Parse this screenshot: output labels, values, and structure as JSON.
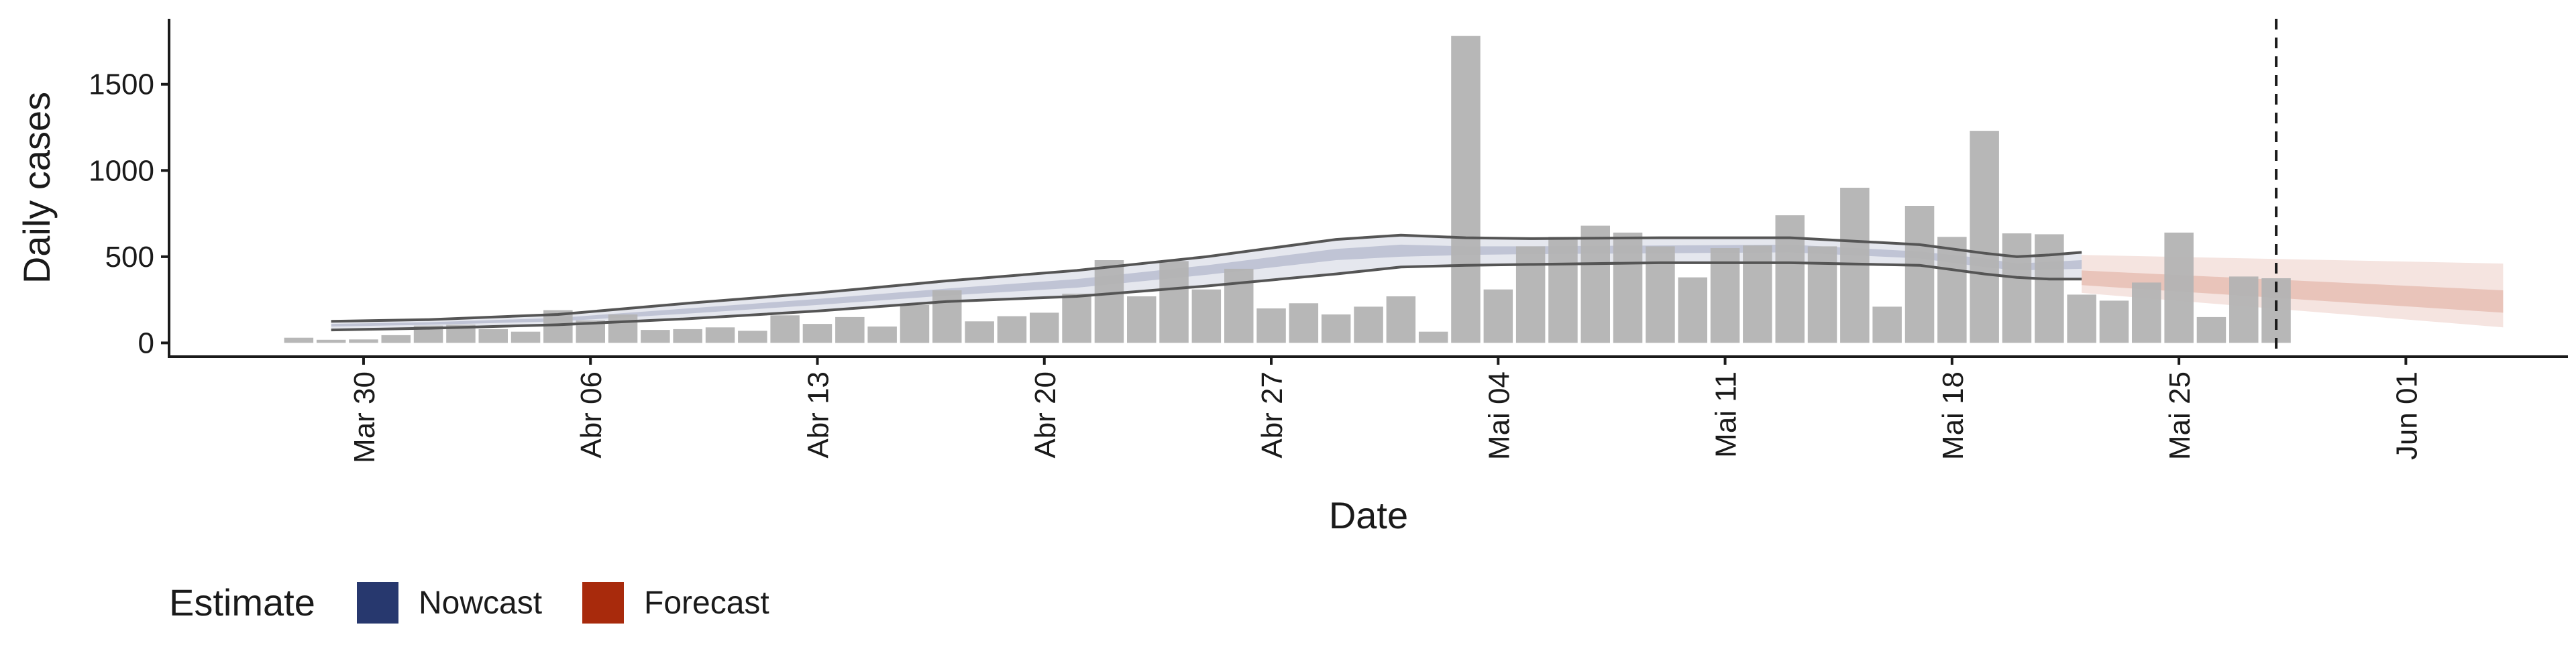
{
  "chart_data": {
    "type": "bar",
    "xlabel": "Date",
    "ylabel": "Daily cases",
    "ylim": [
      -80,
      1880
    ],
    "yticks": [
      0,
      500,
      1000,
      1500
    ],
    "x_dates": [
      "2020-03-28",
      "2020-03-29",
      "2020-03-30",
      "2020-03-31",
      "2020-04-01",
      "2020-04-02",
      "2020-04-03",
      "2020-04-04",
      "2020-04-05",
      "2020-04-06",
      "2020-04-07",
      "2020-04-08",
      "2020-04-09",
      "2020-04-10",
      "2020-04-11",
      "2020-04-12",
      "2020-04-13",
      "2020-04-14",
      "2020-04-15",
      "2020-04-16",
      "2020-04-17",
      "2020-04-18",
      "2020-04-19",
      "2020-04-20",
      "2020-04-21",
      "2020-04-22",
      "2020-04-23",
      "2020-04-24",
      "2020-04-25",
      "2020-04-26",
      "2020-04-27",
      "2020-04-28",
      "2020-04-29",
      "2020-04-30",
      "2020-05-01",
      "2020-05-02",
      "2020-05-03",
      "2020-05-04",
      "2020-05-05",
      "2020-05-06",
      "2020-05-07",
      "2020-05-08",
      "2020-05-09",
      "2020-05-10",
      "2020-05-11",
      "2020-05-12",
      "2020-05-13",
      "2020-05-14",
      "2020-05-15",
      "2020-05-16",
      "2020-05-17",
      "2020-05-18",
      "2020-05-19",
      "2020-05-20",
      "2020-05-21",
      "2020-05-22",
      "2020-05-23",
      "2020-05-24",
      "2020-05-25",
      "2020-05-26",
      "2020-05-27",
      "2020-05-28",
      "2020-05-29"
    ],
    "xlim": [
      "2020-03-24",
      "2020-06-06"
    ],
    "x_tick_labels": [
      {
        "date": "2020-03-30",
        "label": "Mar 30"
      },
      {
        "date": "2020-04-06",
        "label": "Abr 06"
      },
      {
        "date": "2020-04-13",
        "label": "Abr 13"
      },
      {
        "date": "2020-04-20",
        "label": "Abr 20"
      },
      {
        "date": "2020-04-27",
        "label": "Abr 27"
      },
      {
        "date": "2020-05-04",
        "label": "Mai 04"
      },
      {
        "date": "2020-05-11",
        "label": "Mai 11"
      },
      {
        "date": "2020-05-18",
        "label": "Mai 18"
      },
      {
        "date": "2020-05-25",
        "label": "Mai 25"
      },
      {
        "date": "2020-06-01",
        "label": "Jun 01"
      }
    ],
    "values": [
      30,
      18,
      20,
      45,
      100,
      105,
      80,
      65,
      190,
      130,
      165,
      75,
      80,
      90,
      70,
      160,
      110,
      150,
      95,
      220,
      305,
      125,
      155,
      175,
      285,
      480,
      270,
      475,
      310,
      430,
      200,
      230,
      165,
      210,
      270,
      65,
      1780,
      310,
      560,
      615,
      680,
      640,
      560,
      380,
      550,
      565,
      740,
      560,
      900,
      210,
      795,
      615,
      1230,
      635,
      630,
      280,
      245,
      350,
      640,
      150,
      385,
      375,
      0
    ],
    "bar_color": "#b3b3b3",
    "nowcast": {
      "dates": [
        "2020-03-29",
        "2020-04-01",
        "2020-04-05",
        "2020-04-09",
        "2020-04-13",
        "2020-04-17",
        "2020-04-21",
        "2020-04-25",
        "2020-04-29",
        "2020-05-01",
        "2020-05-03",
        "2020-05-05",
        "2020-05-09",
        "2020-05-13",
        "2020-05-17",
        "2020-05-19",
        "2020-05-20",
        "2020-05-21",
        "2020-05-22"
      ],
      "upper": [
        125,
        135,
        165,
        230,
        290,
        360,
        420,
        500,
        600,
        625,
        610,
        605,
        610,
        610,
        570,
        520,
        500,
        510,
        525
      ],
      "upper_inner": [
        110,
        120,
        145,
        200,
        255,
        315,
        370,
        450,
        545,
        570,
        560,
        560,
        565,
        570,
        530,
        490,
        460,
        470,
        480
      ],
      "lower_inner": [
        95,
        105,
        125,
        170,
        220,
        275,
        320,
        395,
        480,
        500,
        510,
        515,
        520,
        525,
        490,
        440,
        420,
        425,
        430
      ],
      "lower": [
        75,
        85,
        105,
        140,
        185,
        240,
        270,
        330,
        400,
        440,
        450,
        455,
        465,
        465,
        450,
        400,
        380,
        370,
        370
      ],
      "color": "#2b3a73"
    },
    "forecast": {
      "dates": [
        "2020-05-22",
        "2020-06-04"
      ],
      "upper": [
        510,
        460
      ],
      "upper_inner": [
        420,
        305
      ],
      "lower_inner": [
        335,
        175
      ],
      "lower": [
        290,
        90
      ],
      "color": "#b5310f"
    },
    "vline_date": "2020-05-28",
    "legend": {
      "title": "Estimate",
      "items": [
        {
          "label": "Nowcast",
          "color": "#27386e"
        },
        {
          "label": "Forecast",
          "color": "#a82a0c"
        }
      ]
    }
  }
}
